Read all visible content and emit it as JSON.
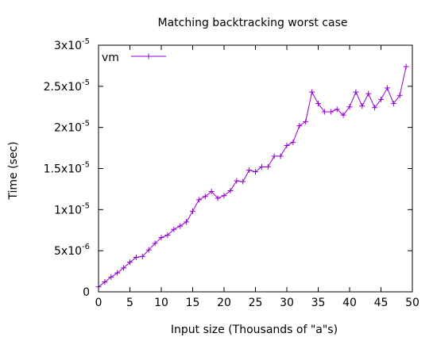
{
  "chart_data": {
    "type": "line",
    "title": "Matching backtracking worst case",
    "xlabel": "Input size (Thousands of \"a\"s)",
    "ylabel": "Time (sec)",
    "xlim": [
      0,
      50
    ],
    "ylim": [
      0,
      3e-05
    ],
    "grid": false,
    "legend_position": "top-left",
    "x_ticks": [
      {
        "value": 0,
        "label": "0"
      },
      {
        "value": 5,
        "label": "5"
      },
      {
        "value": 10,
        "label": "10"
      },
      {
        "value": 15,
        "label": "15"
      },
      {
        "value": 20,
        "label": "20"
      },
      {
        "value": 25,
        "label": "25"
      },
      {
        "value": 30,
        "label": "30"
      },
      {
        "value": 35,
        "label": "35"
      },
      {
        "value": 40,
        "label": "40"
      },
      {
        "value": 45,
        "label": "45"
      },
      {
        "value": 50,
        "label": "50"
      }
    ],
    "y_ticks": [
      {
        "value": 0,
        "mantissa": "0",
        "exp": ""
      },
      {
        "value": 5e-06,
        "mantissa": "5x10",
        "exp": "-6"
      },
      {
        "value": 1e-05,
        "mantissa": "1x10",
        "exp": "-5"
      },
      {
        "value": 1.5e-05,
        "mantissa": "1.5x10",
        "exp": "-5"
      },
      {
        "value": 2e-05,
        "mantissa": "2x10",
        "exp": "-5"
      },
      {
        "value": 2.5e-05,
        "mantissa": "2.5x10",
        "exp": "-5"
      },
      {
        "value": 3e-05,
        "mantissa": "3x10",
        "exp": "-5"
      }
    ],
    "series": [
      {
        "name": "vm",
        "color": "#9400d3",
        "marker": "plus",
        "x": [
          0,
          1,
          2,
          3,
          4,
          5,
          6,
          7,
          8,
          9,
          10,
          11,
          12,
          13,
          14,
          15,
          16,
          17,
          18,
          19,
          20,
          21,
          22,
          23,
          24,
          25,
          26,
          27,
          28,
          29,
          30,
          31,
          32,
          33,
          34,
          35,
          36,
          37,
          38,
          39,
          40,
          41,
          42,
          43,
          44,
          45,
          46,
          47,
          48,
          49
        ],
        "values": [
          6e-07,
          1.2e-06,
          1.8e-06,
          2.3e-06,
          2.9e-06,
          3.6e-06,
          4.2e-06,
          4.3e-06,
          5.1e-06,
          5.9e-06,
          6.6e-06,
          6.9e-06,
          7.6e-06,
          8e-06,
          8.5e-06,
          9.8e-06,
          1.12e-05,
          1.16e-05,
          1.22e-05,
          1.14e-05,
          1.17e-05,
          1.23e-05,
          1.35e-05,
          1.34e-05,
          1.48e-05,
          1.46e-05,
          1.52e-05,
          1.52e-05,
          1.65e-05,
          1.65e-05,
          1.78e-05,
          1.82e-05,
          2.02e-05,
          2.07e-05,
          2.43e-05,
          2.29e-05,
          2.19e-05,
          2.19e-05,
          2.22e-05,
          2.15e-05,
          2.25e-05,
          2.43e-05,
          2.26e-05,
          2.41e-05,
          2.24e-05,
          2.34e-05,
          2.48e-05,
          2.29e-05,
          2.39e-05,
          2.74e-05
        ]
      }
    ]
  }
}
